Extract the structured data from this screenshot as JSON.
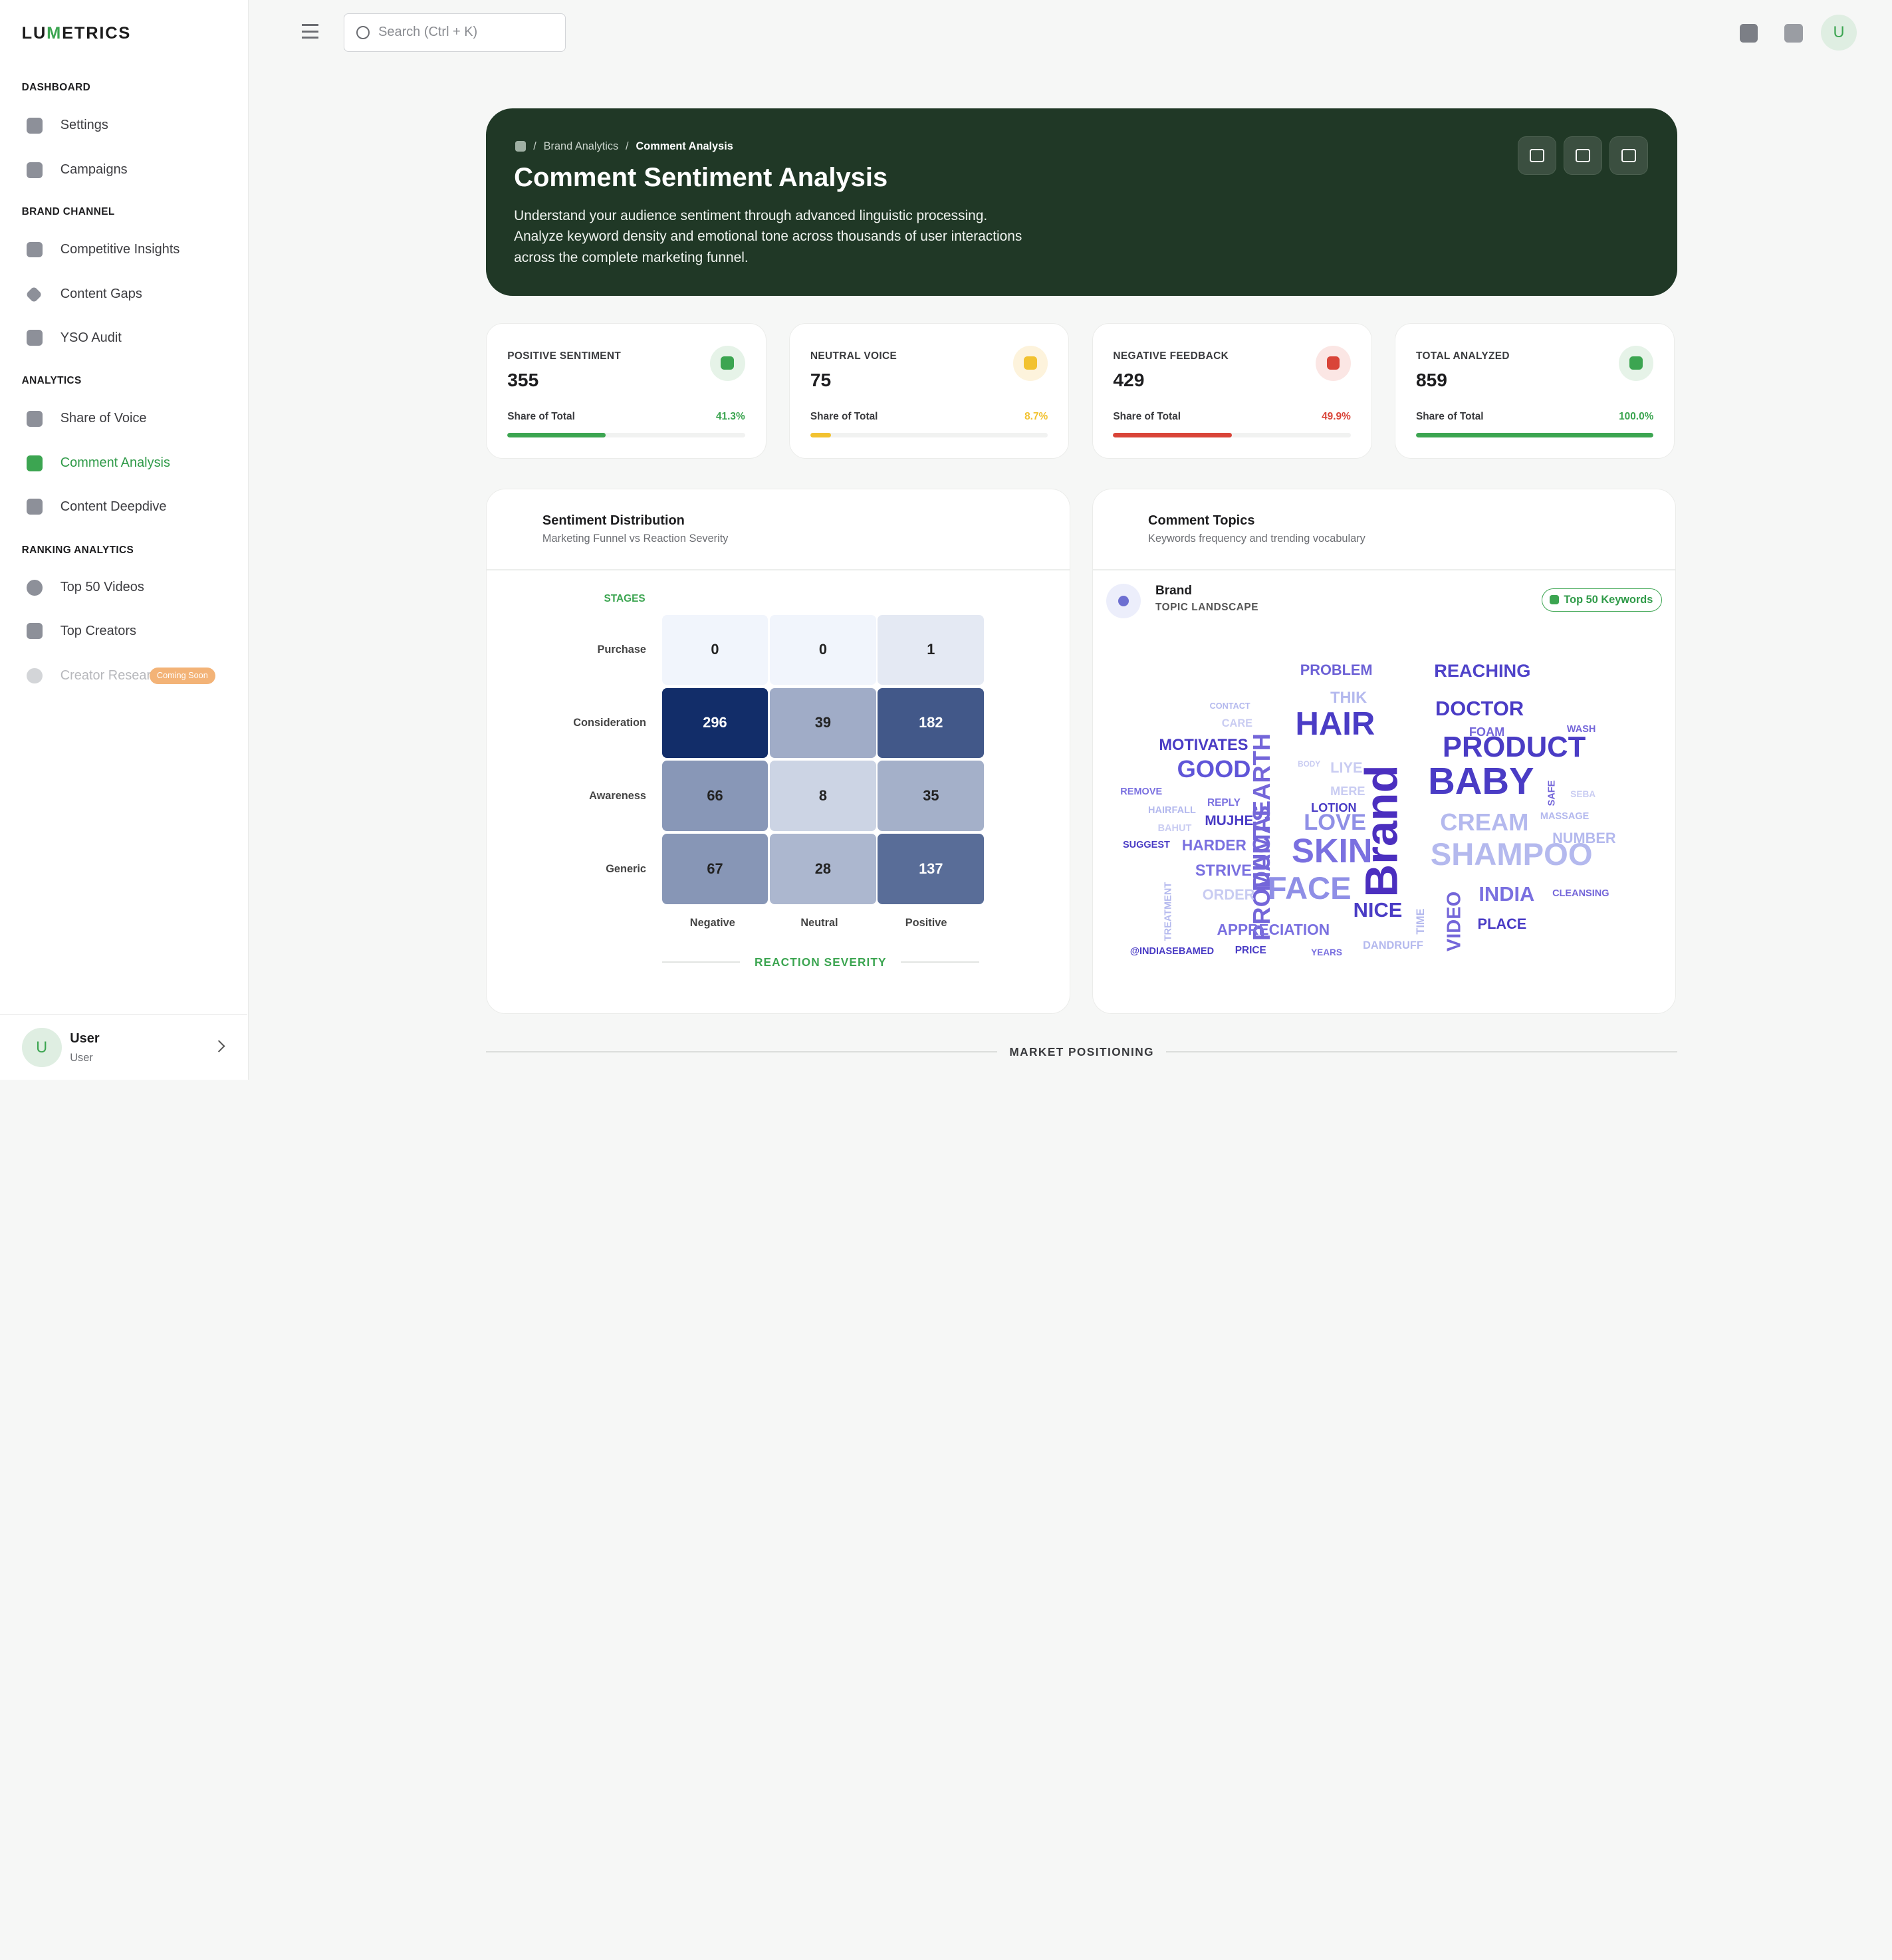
{
  "app": {
    "logo_pre": "LU",
    "logo_mid": "M",
    "logo_post": "ETRICS"
  },
  "sidebar": {
    "sections": [
      "DASHBOARD",
      "BRAND CHANNEL",
      "ANALYTICS",
      "RANKING ANALYTICS"
    ],
    "items": [
      {
        "label": "Settings",
        "icon": "gear-icon"
      },
      {
        "label": "Campaigns",
        "icon": "presentation-icon"
      },
      {
        "label": "Competitive Insights",
        "icon": "target-icon"
      },
      {
        "label": "Content Gaps",
        "icon": "diamond-icon"
      },
      {
        "label": "YSO Audit",
        "icon": "clipboard-icon"
      },
      {
        "label": "Share of Voice",
        "icon": "bar-chart-icon"
      },
      {
        "label": "Comment Analysis",
        "icon": "chat-icon"
      },
      {
        "label": "Content Deepdive",
        "icon": "trend-icon"
      },
      {
        "label": "Top 50 Videos",
        "icon": "play-icon"
      },
      {
        "label": "Top Creators",
        "icon": "users-icon"
      },
      {
        "label": "Creator Resear",
        "icon": "search-icon",
        "badge": "Coming Soon"
      }
    ],
    "user": {
      "initial": "U",
      "name": "User",
      "role": "User"
    }
  },
  "topbar": {
    "search_placeholder": "Search (Ctrl + K)",
    "avatar_initial": "U"
  },
  "hero": {
    "breadcrumb": [
      "Brand Analytics",
      "Comment Analysis"
    ],
    "title": "Comment Sentiment Analysis",
    "description": "Understand your audience sentiment through advanced linguistic processing. Analyze keyword density and emotional tone across thousands of user interactions across the complete marketing funnel."
  },
  "stats": [
    {
      "label": "POSITIVE SENTIMENT",
      "value": "355",
      "share_label": "Share of Total",
      "pct": "41.3%",
      "fraction": 0.413,
      "color": "#3ca551",
      "bg": "#e6f3e8"
    },
    {
      "label": "NEUTRAL VOICE",
      "value": "75",
      "share_label": "Share of Total",
      "pct": "8.7%",
      "fraction": 0.087,
      "color": "#f2c230",
      "bg": "#fdf3dc"
    },
    {
      "label": "NEGATIVE FEEDBACK",
      "value": "429",
      "share_label": "Share of Total",
      "pct": "49.9%",
      "fraction": 0.499,
      "color": "#d94438",
      "bg": "#fbe6e4"
    },
    {
      "label": "TOTAL ANALYZED",
      "value": "859",
      "share_label": "Share of Total",
      "pct": "100.0%",
      "fraction": 1.0,
      "color": "#3ca551",
      "bg": "#e6f3e8"
    }
  ],
  "distribution": {
    "title": "Sentiment Distribution",
    "subtitle": "Marketing Funnel vs Reaction Severity",
    "stages_label": "STAGES",
    "axis_label": "REACTION SEVERITY"
  },
  "chart_data": {
    "type": "heatmap",
    "title": "Sentiment Distribution",
    "rows": [
      "Purchase",
      "Consideration",
      "Awareness",
      "Generic"
    ],
    "columns": [
      "Negative",
      "Neutral",
      "Positive"
    ],
    "values": [
      [
        0,
        0,
        1
      ],
      [
        296,
        39,
        182
      ],
      [
        66,
        8,
        35
      ],
      [
        67,
        28,
        137
      ]
    ],
    "ylabel": "STAGES",
    "xlabel": "REACTION SEVERITY"
  },
  "topics": {
    "title": "Comment Topics",
    "subtitle": "Keywords frequency and trending vocabulary",
    "brand": "Brand",
    "landscape": "TOPIC LANDSCAPE",
    "badge": "Top 50 Keywords",
    "words": [
      "Brand",
      "MAMAEARTH",
      "PRODUCTS",
      "HAIR",
      "BABY",
      "SKIN",
      "SHAMPOO",
      "PRODUCT",
      "FACE",
      "GOOD",
      "CREAM",
      "LOVE",
      "DOCTOR",
      "REACHING",
      "INDIA",
      "NICE",
      "VIDEO",
      "MOTIVATES",
      "PROBLEM",
      "APPRECIATION",
      "HARDER",
      "STRIVE",
      "MUJHE",
      "THIK",
      "NUMBER",
      "LIYE",
      "ORDER",
      "PLACE",
      "FOAM",
      "LOTION",
      "MERE",
      "TREATMENT",
      "WASH",
      "REPLY",
      "CLEANSING",
      "MASSAGE",
      "SAFE",
      "SEBA",
      "CARE",
      "CONTACT",
      "BODY",
      "REMOVE",
      "HAIRFALL",
      "BAHUT",
      "SUGGEST",
      "@INDIASEBAMED",
      "PRICE",
      "YEARS",
      "DANDRUFF",
      "TIME"
    ]
  },
  "market": {
    "label": "MARKET POSITIONING"
  }
}
